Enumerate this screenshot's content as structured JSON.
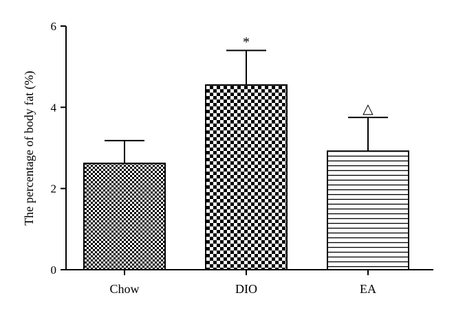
{
  "chart_data": {
    "type": "bar",
    "title": "",
    "xlabel": "",
    "ylabel": "The percentage of body fat (%)",
    "ylim": [
      0,
      6
    ],
    "yticks": [
      0,
      2,
      4,
      6
    ],
    "categories": [
      "Chow",
      "DIO",
      "EA"
    ],
    "values": [
      2.62,
      4.55,
      2.92
    ],
    "error_upper": [
      3.18,
      5.4,
      3.75
    ],
    "annotations": [
      "",
      "*",
      "△"
    ],
    "patterns": [
      "fine-checker",
      "coarse-checker",
      "horizontal-lines"
    ],
    "grid": false,
    "legend": "none"
  }
}
